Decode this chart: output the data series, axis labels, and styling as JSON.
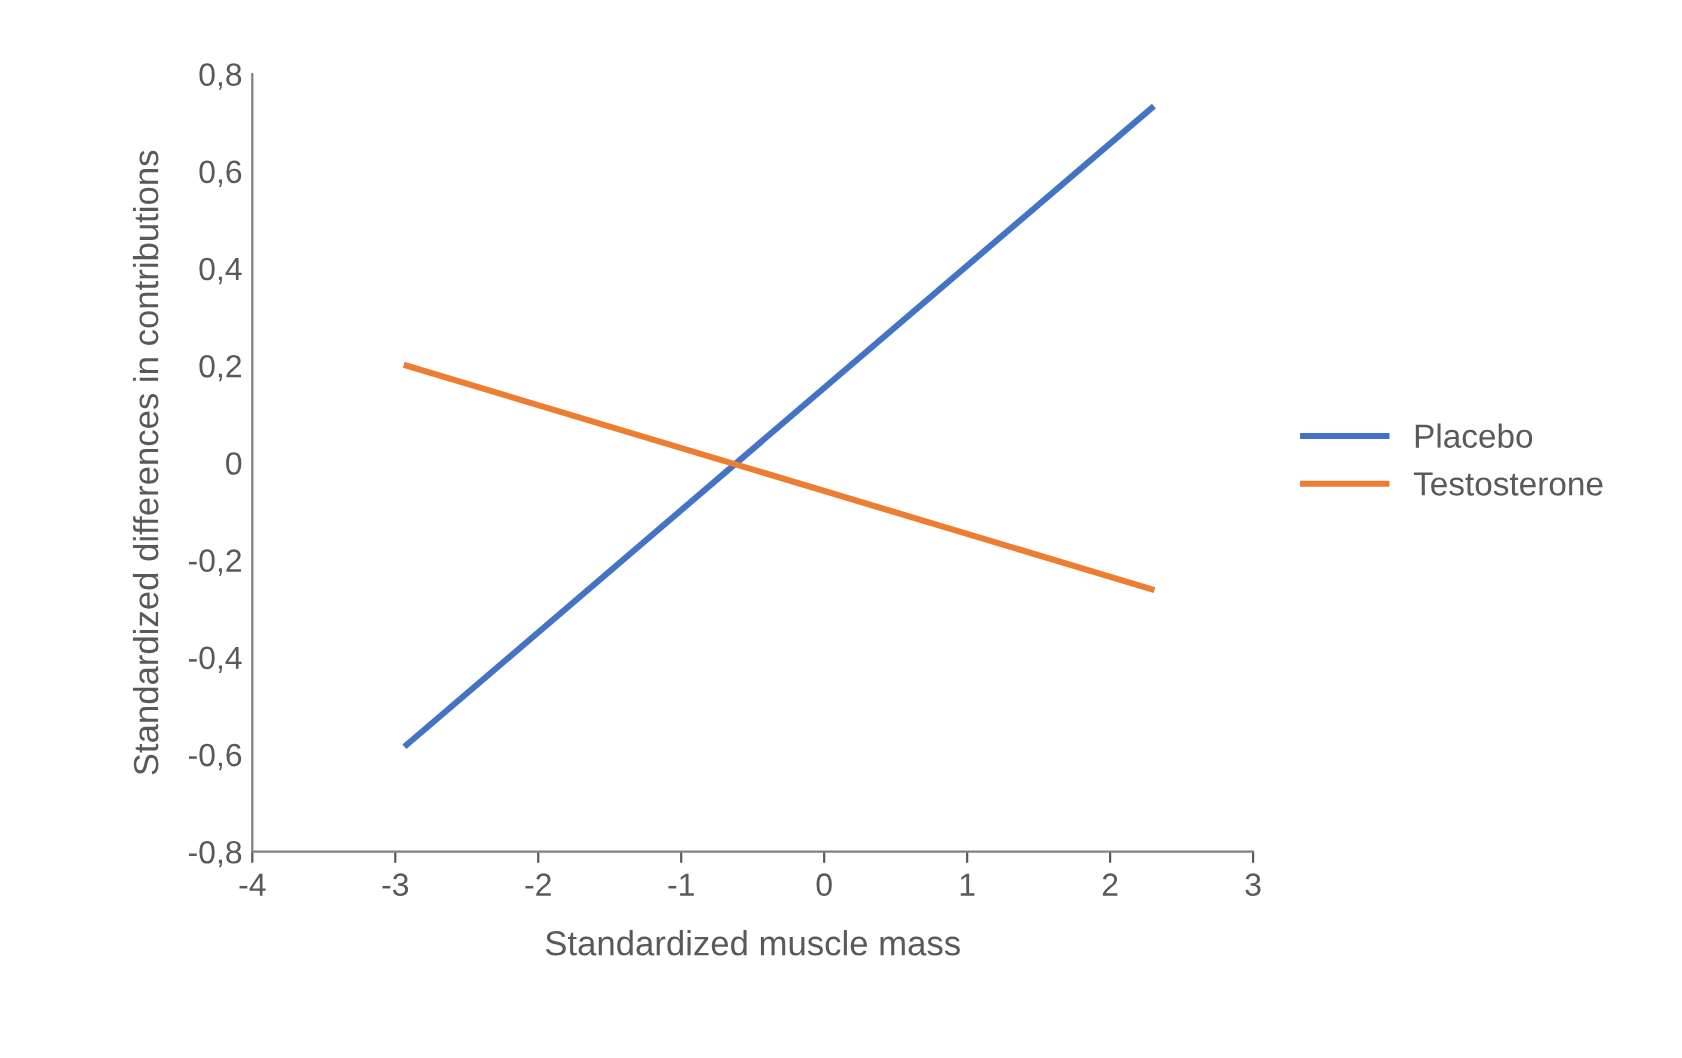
{
  "chart_data": {
    "type": "line",
    "xlabel": "Standardized muscle mass",
    "ylabel": "Standardized differences in contributions",
    "series": [
      {
        "name": "Placebo",
        "color": "#4472c4",
        "values": [
          -0.58,
          0.73
        ]
      },
      {
        "name": "Testosterone",
        "color": "#ed7d31",
        "values": [
          0.2,
          -0.26
        ]
      }
    ],
    "x": [
      -2.92,
      2.29
    ],
    "xlim": [
      -4,
      3
    ],
    "xticks": [
      -4,
      -3,
      -2,
      -1,
      0,
      1,
      2,
      3
    ],
    "ylim": [
      -0.8,
      0.8
    ],
    "yticks": [
      {
        "value": -0.8,
        "label": "-0,8"
      },
      {
        "value": -0.6,
        "label": "-0,6"
      },
      {
        "value": -0.4,
        "label": "-0,4"
      },
      {
        "value": -0.2,
        "label": "-0,2"
      },
      0,
      {
        "value": 0.2,
        "label": "0,2"
      },
      {
        "value": 0.4,
        "label": "0,4"
      },
      {
        "value": 0.6,
        "label": "0,6"
      },
      {
        "value": 0.8,
        "label": "0,8"
      }
    ],
    "grid": false,
    "legend": "right",
    "marker": "none",
    "line_style": "solid"
  }
}
